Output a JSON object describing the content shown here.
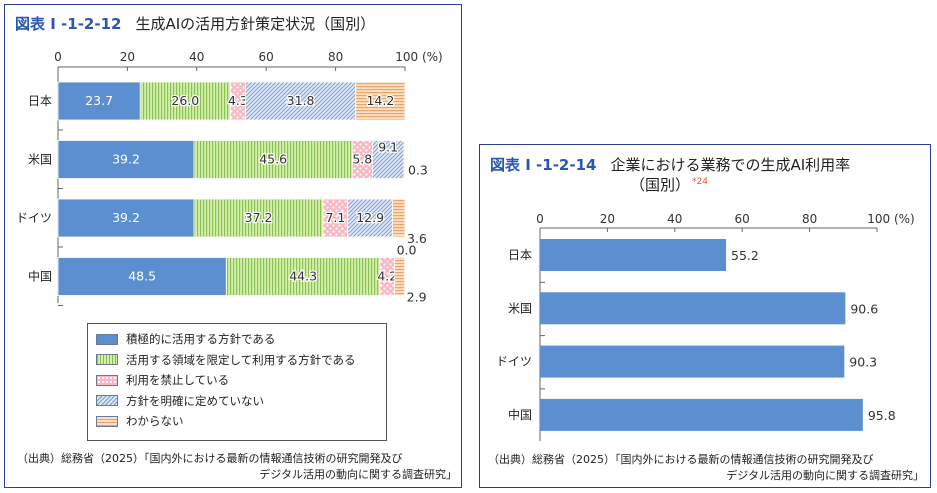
{
  "left_chart": {
    "fig_num": "図表 I -1-2-12",
    "title": "生成AIの活用方針策定状況（国別）",
    "axis_ticks": [
      "0",
      "20",
      "40",
      "60",
      "80",
      "100 (%)"
    ],
    "source_line1": "（出典）総務省（2025）「国内外における最新の情報通信技術の研究開発及び",
    "source_line2": "デジタル活用の動向に関する調査研究」"
  },
  "right_chart": {
    "fig_num": "図表 I -1-2-14",
    "title_line1": "企業における業務での生成AI利用率",
    "title_line2": "（国別）",
    "footnote_mark": "*24",
    "axis_ticks": [
      "0",
      "20",
      "40",
      "60",
      "80",
      "100 (%)"
    ],
    "source_line1": "（出典）総務省（2025）「国内外における最新の情報通信技術の研究開発及び",
    "source_line2": "デジタル活用の動向に関する調査研究」"
  },
  "chart_data": [
    {
      "type": "bar",
      "orientation": "horizontal",
      "stacked": true,
      "title": "生成AIの活用方針策定状況（国別）",
      "categories": [
        "日本",
        "米国",
        "ドイツ",
        "中国"
      ],
      "xlim": [
        0,
        100
      ],
      "unit": "%",
      "series": [
        {
          "name": "積極的に活用する方針である",
          "values": [
            23.7,
            39.2,
            39.2,
            48.5
          ],
          "color": "#5b8fd0",
          "pattern": "solid"
        },
        {
          "name": "活用する領域を限定して利用する方針である",
          "values": [
            26.0,
            45.6,
            37.2,
            44.3
          ],
          "color": "#b9e08a",
          "pattern": "vertical-lines"
        },
        {
          "name": "利用を禁止している",
          "values": [
            4.3,
            5.8,
            7.1,
            4.2
          ],
          "color": "#f5b3c0",
          "pattern": "dots"
        },
        {
          "name": "方針を明確に定めていない",
          "values": [
            31.8,
            9.1,
            12.9,
            0.0
          ],
          "color": "#c6d6f0",
          "pattern": "diagonal"
        },
        {
          "name": "わからない",
          "values": [
            14.2,
            0.3,
            3.6,
            2.9
          ],
          "color": "#f7c79a",
          "pattern": "horizontal-lines"
        }
      ],
      "legend": "bottom"
    },
    {
      "type": "bar",
      "orientation": "horizontal",
      "title": "企業における業務での生成AI利用率（国別）",
      "categories": [
        "日本",
        "米国",
        "ドイツ",
        "中国"
      ],
      "values": [
        55.2,
        90.6,
        90.3,
        95.8
      ],
      "xlim": [
        0,
        100
      ],
      "unit": "%",
      "color": "#5b8fd0"
    }
  ]
}
